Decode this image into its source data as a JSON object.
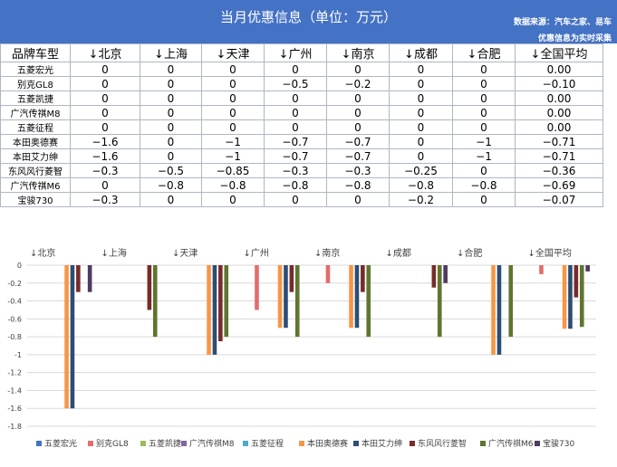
{
  "header": {
    "title": "当月优惠信息（单位：万元）",
    "source": "数据来源：汽车之家、易车",
    "note": "优惠信息为实时采集"
  },
  "table": {
    "corner": "品牌车型",
    "columns": [
      "↓北京",
      "↓上海",
      "↓天津",
      "↓广州",
      "↓南京",
      "↓成都",
      "↓合肥",
      "↓全国平均"
    ],
    "rows": [
      {
        "name": "五菱宏光",
        "values": [
          "0",
          "0",
          "0",
          "0",
          "0",
          "0",
          "0",
          "0.00"
        ]
      },
      {
        "name": "别克GL8",
        "values": [
          "0",
          "0",
          "0",
          "−0.5",
          "−0.2",
          "0",
          "0",
          "−0.10"
        ]
      },
      {
        "name": "五菱凯捷",
        "values": [
          "0",
          "0",
          "0",
          "0",
          "0",
          "0",
          "0",
          "0.00"
        ]
      },
      {
        "name": "广汽传祺M8",
        "values": [
          "0",
          "0",
          "0",
          "0",
          "0",
          "0",
          "0",
          "0.00"
        ]
      },
      {
        "name": "五菱征程",
        "values": [
          "0",
          "0",
          "0",
          "0",
          "0",
          "0",
          "0",
          "0.00"
        ]
      },
      {
        "name": "本田奥德赛",
        "values": [
          "−1.6",
          "0",
          "−1",
          "−0.7",
          "−0.7",
          "0",
          "−1",
          "−0.71"
        ]
      },
      {
        "name": "本田艾力绅",
        "values": [
          "−1.6",
          "0",
          "−1",
          "−0.7",
          "−0.7",
          "0",
          "−1",
          "−0.71"
        ]
      },
      {
        "name": "东风风行菱智",
        "values": [
          "−0.3",
          "−0.5",
          "−0.85",
          "−0.3",
          "−0.3",
          "−0.25",
          "0",
          "−0.36"
        ]
      },
      {
        "name": "广汽传祺M6",
        "values": [
          "0",
          "−0.8",
          "−0.8",
          "−0.8",
          "−0.8",
          "−0.8",
          "−0.8",
          "−0.69"
        ]
      },
      {
        "name": "宝骏730",
        "values": [
          "−0.3",
          "0",
          "0",
          "0",
          "0",
          "−0.2",
          "0",
          "−0.07"
        ]
      }
    ]
  },
  "chart_data": {
    "type": "bar",
    "categories": [
      "↓北京",
      "↓上海",
      "↓天津",
      "↓广州",
      "↓南京",
      "↓成都",
      "↓合肥",
      "↓全国平均"
    ],
    "series": [
      {
        "name": "五菱宏光",
        "color": "#4472c4",
        "values": [
          0,
          0,
          0,
          0,
          0,
          0,
          0,
          0
        ]
      },
      {
        "name": "别克GL8",
        "color": "#e46c6c",
        "values": [
          0,
          0,
          0,
          -0.5,
          -0.2,
          0,
          0,
          -0.1
        ]
      },
      {
        "name": "五菱凯捷",
        "color": "#9bbb59",
        "values": [
          0,
          0,
          0,
          0,
          0,
          0,
          0,
          0
        ]
      },
      {
        "name": "广汽传祺M8",
        "color": "#8064a2",
        "values": [
          0,
          0,
          0,
          0,
          0,
          0,
          0,
          0
        ]
      },
      {
        "name": "五菱征程",
        "color": "#4bacc6",
        "values": [
          0,
          0,
          0,
          0,
          0,
          0,
          0,
          0
        ]
      },
      {
        "name": "本田奥德赛",
        "color": "#f79646",
        "values": [
          -1.6,
          0,
          -1,
          -0.7,
          -0.7,
          0,
          -1,
          -0.71
        ]
      },
      {
        "name": "本田艾力绅",
        "color": "#2c4d75",
        "values": [
          -1.6,
          0,
          -1,
          -0.7,
          -0.7,
          0,
          -1,
          -0.71
        ]
      },
      {
        "name": "东风风行菱智",
        "color": "#772c2a",
        "values": [
          -0.3,
          -0.5,
          -0.85,
          -0.3,
          -0.3,
          -0.25,
          0,
          -0.36
        ]
      },
      {
        "name": "广汽传祺M6",
        "color": "#5f7530",
        "values": [
          0,
          -0.8,
          -0.8,
          -0.8,
          -0.8,
          -0.8,
          -0.8,
          -0.69
        ]
      },
      {
        "name": "宝骏730",
        "color": "#4d3b62",
        "values": [
          -0.3,
          0,
          0,
          0,
          0,
          -0.2,
          0,
          -0.07
        ]
      }
    ],
    "ylim": [
      -1.8,
      0
    ],
    "ytick_step": 0.2,
    "yticks": [
      "0",
      "-0.2",
      "-0.4",
      "-0.6",
      "-0.8",
      "-1",
      "-1.2",
      "-1.4",
      "-1.6",
      "-1.8"
    ],
    "grid": true,
    "legend": "bottom"
  }
}
